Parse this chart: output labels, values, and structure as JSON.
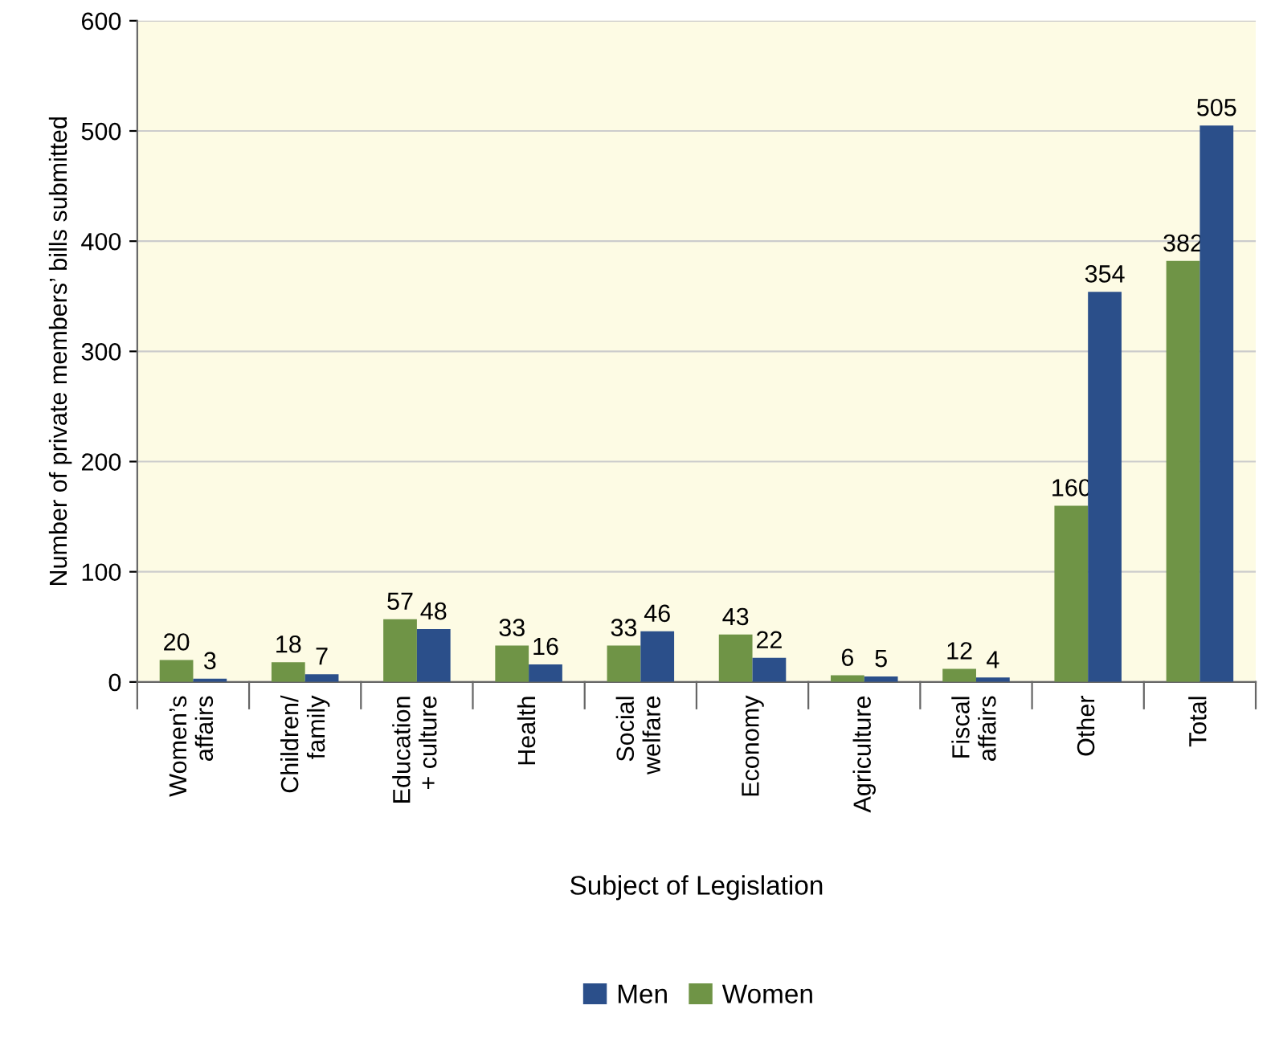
{
  "chart_data": {
    "type": "bar",
    "xlabel": "Subject of Legislation",
    "ylabel": "Number of private members’ bills submitted",
    "categories": [
      "Women’s\naffairs",
      "Children/\nfamily",
      "Education\n+ culture",
      "Health",
      "Social\nwelfare",
      "Economy",
      "Agriculture",
      "Fiscal\naffairs",
      "Other",
      "Total"
    ],
    "series": [
      {
        "name": "Women",
        "color": "#6f9446",
        "values": [
          20,
          18,
          57,
          33,
          33,
          43,
          6,
          12,
          160,
          382
        ]
      },
      {
        "name": "Men",
        "color": "#2b4f8a",
        "values": [
          3,
          7,
          48,
          16,
          46,
          22,
          5,
          4,
          354,
          505
        ]
      }
    ],
    "ylim": [
      0,
      600
    ],
    "yticks": [
      0,
      100,
      200,
      300,
      400,
      500,
      600
    ],
    "grid": "y",
    "legend": "bottom",
    "data_labels": true
  }
}
